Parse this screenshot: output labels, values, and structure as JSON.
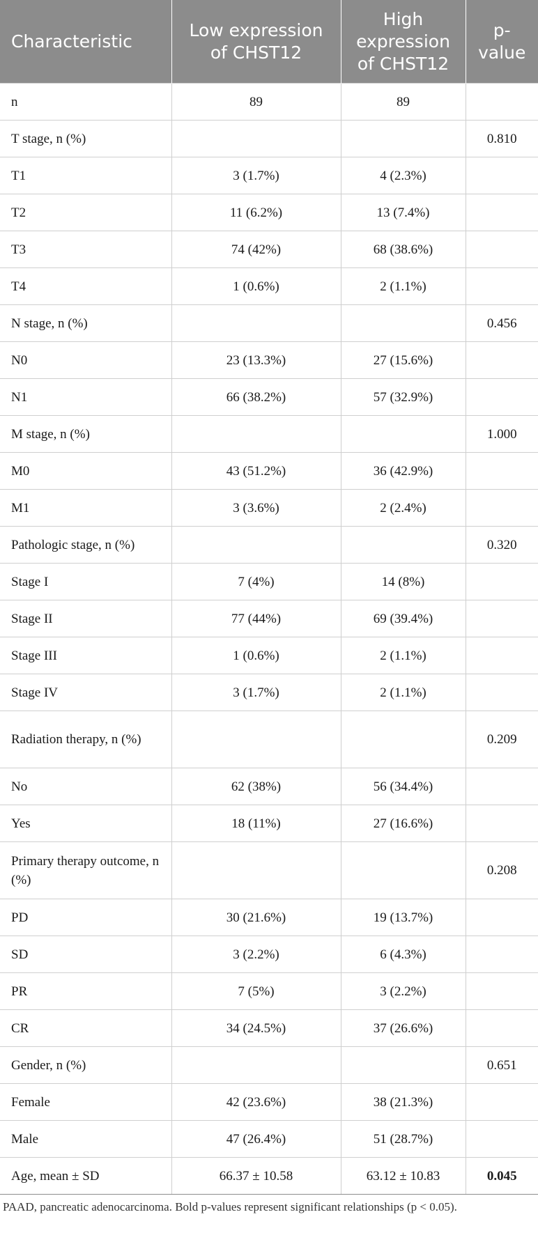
{
  "table": {
    "headers": [
      "Characteristic",
      "Low expression of CHST12",
      "High expression of CHST12",
      "p-value"
    ],
    "rows": [
      {
        "label": "n",
        "low": "89",
        "high": "89",
        "p": "",
        "bold": false
      },
      {
        "label": "T stage, n (%)",
        "low": "",
        "high": "",
        "p": "0.810",
        "bold": false
      },
      {
        "label": "T1",
        "low": "3 (1.7%)",
        "high": "4 (2.3%)",
        "p": "",
        "bold": false
      },
      {
        "label": "T2",
        "low": "11 (6.2%)",
        "high": "13 (7.4%)",
        "p": "",
        "bold": false
      },
      {
        "label": "T3",
        "low": "74 (42%)",
        "high": "68 (38.6%)",
        "p": "",
        "bold": false
      },
      {
        "label": "T4",
        "low": "1 (0.6%)",
        "high": "2 (1.1%)",
        "p": "",
        "bold": false
      },
      {
        "label": "N stage, n (%)",
        "low": "",
        "high": "",
        "p": "0.456",
        "bold": false
      },
      {
        "label": "N0",
        "low": "23 (13.3%)",
        "high": "27 (15.6%)",
        "p": "",
        "bold": false
      },
      {
        "label": "N1",
        "low": "66 (38.2%)",
        "high": "57 (32.9%)",
        "p": "",
        "bold": false
      },
      {
        "label": "M stage, n (%)",
        "low": "",
        "high": "",
        "p": "1.000",
        "bold": false
      },
      {
        "label": "M0",
        "low": "43 (51.2%)",
        "high": "36 (42.9%)",
        "p": "",
        "bold": false
      },
      {
        "label": "M1",
        "low": "3 (3.6%)",
        "high": "2 (2.4%)",
        "p": "",
        "bold": false
      },
      {
        "label": "Pathologic stage, n (%)",
        "low": "",
        "high": "",
        "p": "0.320",
        "bold": false
      },
      {
        "label": "Stage I",
        "low": "7 (4%)",
        "high": "14 (8%)",
        "p": "",
        "bold": false
      },
      {
        "label": "Stage II",
        "low": "77 (44%)",
        "high": "69 (39.4%)",
        "p": "",
        "bold": false
      },
      {
        "label": "Stage III",
        "low": "1 (0.6%)",
        "high": "2 (1.1%)",
        "p": "",
        "bold": false
      },
      {
        "label": "Stage IV",
        "low": "3 (1.7%)",
        "high": "2 (1.1%)",
        "p": "",
        "bold": false
      },
      {
        "label": "Radiation therapy, n (%)",
        "low": "",
        "high": "",
        "p": "0.209",
        "bold": false,
        "tall": true
      },
      {
        "label": "No",
        "low": "62 (38%)",
        "high": "56 (34.4%)",
        "p": "",
        "bold": false
      },
      {
        "label": "Yes",
        "low": "18 (11%)",
        "high": "27 (16.6%)",
        "p": "",
        "bold": false
      },
      {
        "label": "Primary therapy outcome, n (%)",
        "low": "",
        "high": "",
        "p": "0.208",
        "bold": false,
        "tall": true
      },
      {
        "label": "PD",
        "low": "30 (21.6%)",
        "high": "19 (13.7%)",
        "p": "",
        "bold": false
      },
      {
        "label": "SD",
        "low": "3 (2.2%)",
        "high": "6 (4.3%)",
        "p": "",
        "bold": false
      },
      {
        "label": "PR",
        "low": "7 (5%)",
        "high": "3 (2.2%)",
        "p": "",
        "bold": false
      },
      {
        "label": "CR",
        "low": "34 (24.5%)",
        "high": "37 (26.6%)",
        "p": "",
        "bold": false
      },
      {
        "label": "Gender, n (%)",
        "low": "",
        "high": "",
        "p": "0.651",
        "bold": false
      },
      {
        "label": "Female",
        "low": "42 (23.6%)",
        "high": "38 (21.3%)",
        "p": "",
        "bold": false
      },
      {
        "label": "Male",
        "low": "47 (26.4%)",
        "high": "51 (28.7%)",
        "p": "",
        "bold": false
      },
      {
        "label": "Age, mean ± SD",
        "low": "66.37 ± 10.58",
        "high": "63.12 ± 10.83",
        "p": "0.045",
        "bold": true
      }
    ]
  },
  "footnote": "PAAD, pancreatic adenocarcinoma. Bold p-values represent significant relationships (p < 0.05).",
  "colors": {
    "header_bg": "#8c8c8c",
    "header_text": "#ffffff",
    "grid": "#cfcfcf"
  }
}
